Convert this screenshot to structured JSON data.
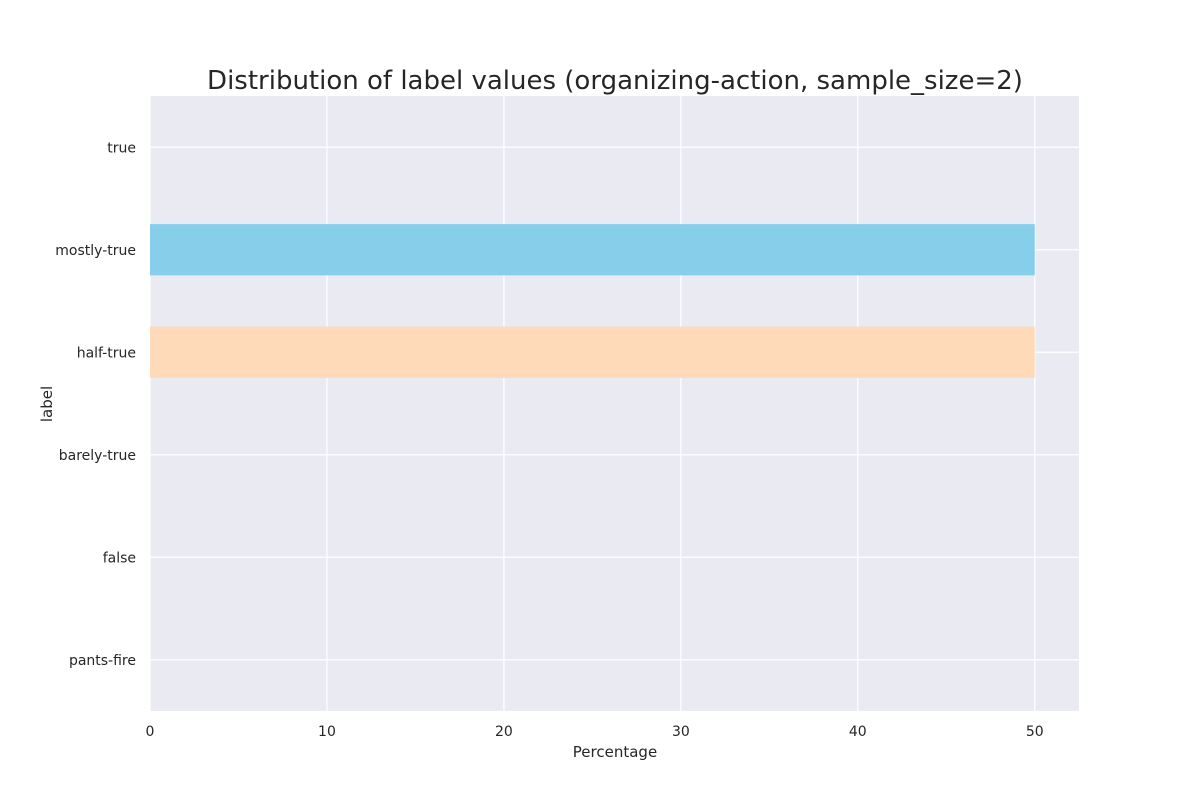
{
  "chart_data": {
    "type": "bar",
    "orientation": "horizontal",
    "title": "Distribution of label values (organizing-action, sample_size=2)",
    "xlabel": "Percentage",
    "ylabel": "label",
    "categories": [
      "true",
      "mostly-true",
      "half-true",
      "barely-true",
      "false",
      "pants-fire"
    ],
    "values": [
      0,
      50,
      50,
      0,
      0,
      0
    ],
    "bar_colors": [
      "#87ceeb",
      "#87ceeb",
      "#ffdab9",
      "#87ceeb",
      "#87ceeb",
      "#87ceeb"
    ],
    "xlim": [
      0,
      52.5
    ],
    "xticks": [
      0,
      10,
      20,
      30,
      40,
      50
    ],
    "grid": true,
    "legend": "none",
    "colors": {
      "plot_background": "#eaeaf2",
      "grid": "#ffffff",
      "text": "#262626"
    }
  }
}
